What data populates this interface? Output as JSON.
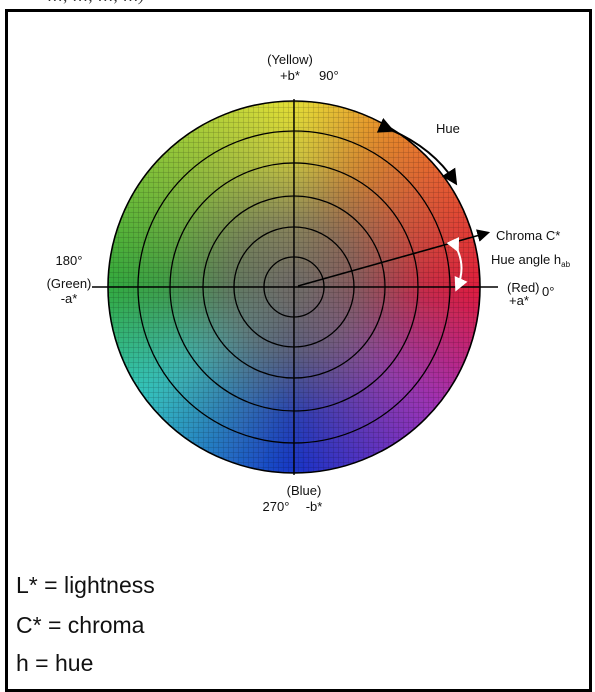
{
  "top_fragment": "…, …, …, …)",
  "axis_labels": {
    "top_name": "(Yellow)",
    "top_axis": "+b*",
    "top_angle": "90°",
    "left_angle": "180°",
    "left_name": "(Green)",
    "left_axis": "-a*",
    "right_name": "(Red)",
    "right_angle": "0°",
    "right_axis": "+a*",
    "bottom_name": "(Blue)",
    "bottom_angle": "270°",
    "bottom_axis": "-b*"
  },
  "annotations": {
    "hue": "Hue",
    "chroma": "Chroma C*",
    "hue_angle": "Hue angle h",
    "hue_angle_sub": "ab"
  },
  "legend": [
    {
      "text": "L* = lightness"
    },
    {
      "text": "C* = chroma"
    },
    {
      "text": "h = hue"
    }
  ],
  "colors": {
    "red": "#e01a3a",
    "yellow": "#e6e236",
    "green": "#2fa83a",
    "cyan": "#34c6c0",
    "blue": "#1432c8",
    "magenta": "#a030b8",
    "center": "#6e6a66"
  }
}
